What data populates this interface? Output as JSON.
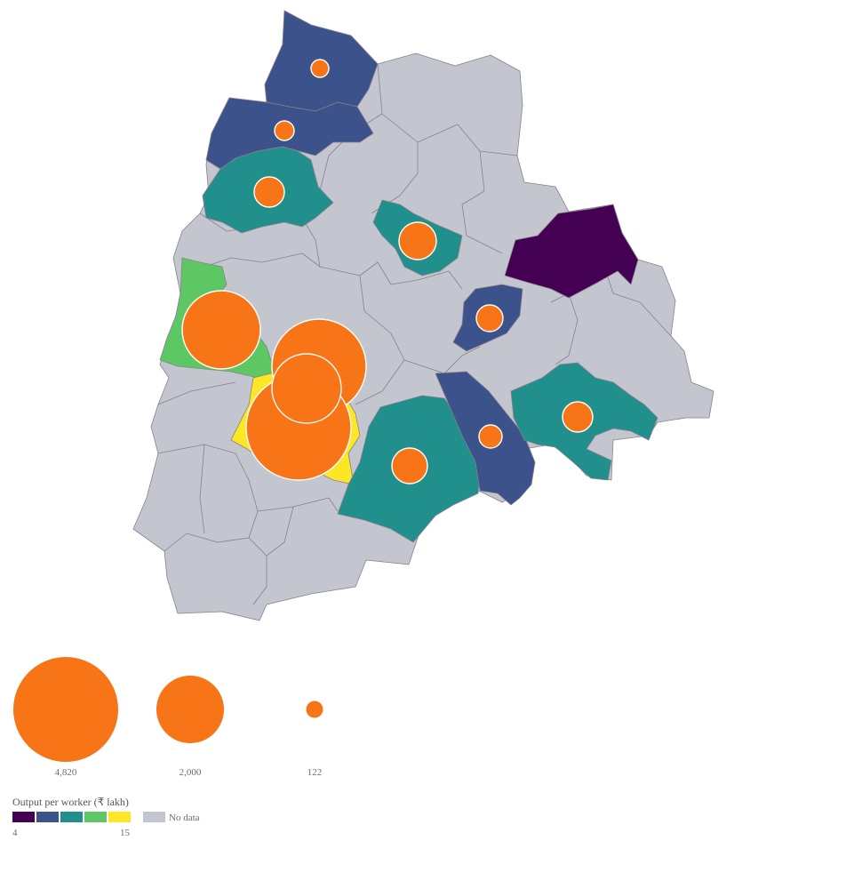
{
  "colors": {
    "no_data": "#c3c6cf",
    "border": "#8a7f8e",
    "bubble": "#f77517",
    "scale": [
      "#440154",
      "#3b528b",
      "#21908d",
      "#5dc863",
      "#fde725"
    ]
  },
  "districts": [
    {
      "id": "adilabad",
      "color_index": 1,
      "output_class": "blue"
    },
    {
      "id": "nirmal",
      "color_index": 1,
      "output_class": "blue"
    },
    {
      "id": "nizamabad",
      "color_index": 2,
      "output_class": "teal"
    },
    {
      "id": "jagtial-east",
      "color_index": 2,
      "output_class": "teal"
    },
    {
      "id": "bhupalpally",
      "color_index": 0,
      "output_class": "purple"
    },
    {
      "id": "warangal",
      "color_index": 1,
      "output_class": "blue"
    },
    {
      "id": "sangareddy",
      "color_index": 3,
      "output_class": "green"
    },
    {
      "id": "medchal",
      "color_index": 3,
      "output_class": "green"
    },
    {
      "id": "hyderabad-rangareddy",
      "color_index": 4,
      "output_class": "yellow"
    },
    {
      "id": "nalgonda",
      "color_index": 2,
      "output_class": "teal"
    },
    {
      "id": "suryapet-khammam-strip",
      "color_index": 1,
      "output_class": "blue"
    },
    {
      "id": "khammam",
      "color_index": 2,
      "output_class": "teal"
    }
  ],
  "bubbles": [
    {
      "district": "adilabad",
      "value": 122
    },
    {
      "district": "nirmal",
      "value": 150
    },
    {
      "district": "nizamabad",
      "value": 420
    },
    {
      "district": "karimnagar",
      "value": 560
    },
    {
      "district": "warangal",
      "value": 300
    },
    {
      "district": "sangareddy",
      "value": 2800
    },
    {
      "district": "medchal",
      "value": 3300
    },
    {
      "district": "hyderabad",
      "value": 2200
    },
    {
      "district": "rangareddy",
      "value": 4820
    },
    {
      "district": "nalgonda",
      "value": 540
    },
    {
      "district": "suryapet",
      "value": 230
    },
    {
      "district": "khammam",
      "value": 390
    }
  ],
  "size_legend": {
    "items": [
      {
        "value": 4820,
        "label": "4,820"
      },
      {
        "value": 2000,
        "label": "2,000"
      },
      {
        "value": 122,
        "label": "122"
      }
    ]
  },
  "color_legend": {
    "title": "Output per worker (₹ lakh)",
    "min_label": "4",
    "max_label": "15",
    "no_data_label": "No data"
  }
}
